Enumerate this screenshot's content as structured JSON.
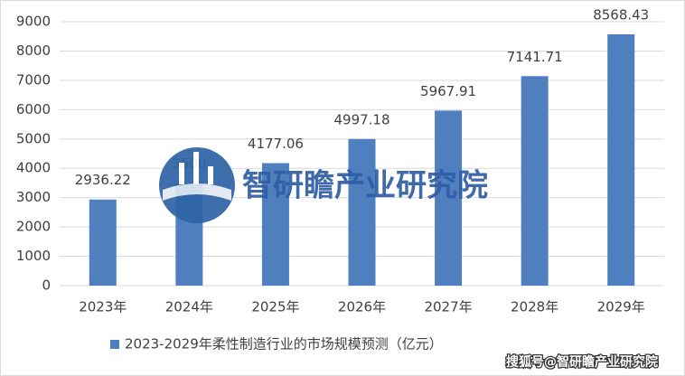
{
  "chart_data": {
    "type": "bar",
    "categories": [
      "2023年",
      "2024年",
      "2025年",
      "2026年",
      "2027年",
      "2028年",
      "2029年"
    ],
    "series": [
      {
        "name": "2023-2029年柔性制造行业的市场规模预测（亿元）",
        "color": "#4f7fbf",
        "values": [
          2936.22,
          3500,
          4177.06,
          4997.18,
          5967.91,
          7141.71,
          8568.43
        ]
      }
    ],
    "ylim": [
      0,
      9000
    ],
    "yticks": [
      0,
      1000,
      2000,
      3000,
      4000,
      5000,
      6000,
      7000,
      8000,
      9000
    ],
    "grid": true,
    "legend": "bottom"
  },
  "watermark": {
    "center": "智研瞻产业研究院",
    "corner": "搜狐号@智研瞻产业研究院"
  }
}
